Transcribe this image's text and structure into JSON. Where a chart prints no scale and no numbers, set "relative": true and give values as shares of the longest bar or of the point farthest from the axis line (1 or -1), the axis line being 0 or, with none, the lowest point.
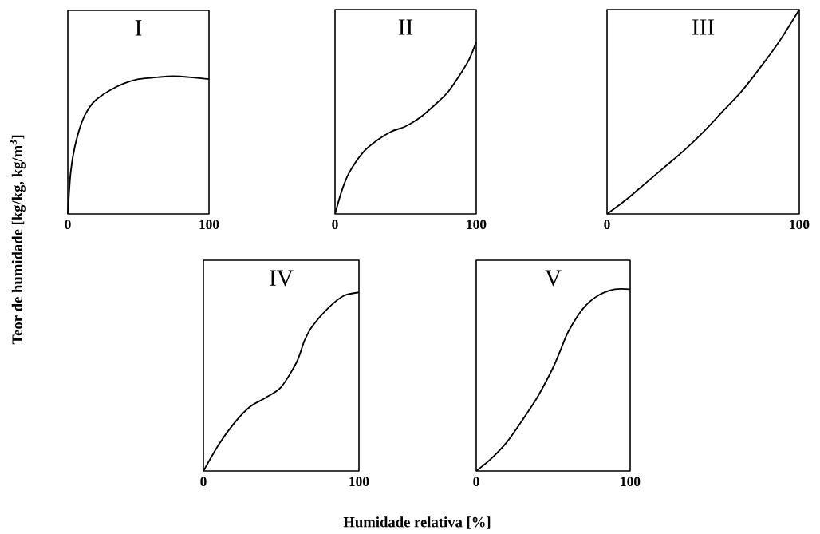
{
  "chart_data": [
    {
      "type": "line",
      "title": "I",
      "ylabel": "Teor de humidade [kg/kg, kg/m$^{3}$]",
      "relative": true,
      "tick_labels": "x",
      "xlim": [
        0,
        100
      ],
      "xticks": [
        0,
        100
      ],
      "series": [
        {
          "color": "#000000",
          "x": [
            0,
            2,
            5,
            10,
            15,
            20,
            30,
            40,
            50,
            60,
            70,
            80,
            90,
            100
          ],
          "values": [
            0,
            0.3,
            0.49,
            0.67,
            0.77,
            0.83,
            0.9,
            0.95,
            0.98,
            0.99,
            1,
            1,
            0.99,
            0.98
          ]
        }
      ]
    },
    {
      "type": "line",
      "title": "II",
      "relative": true,
      "tick_labels": "x",
      "xlim": [
        0,
        100
      ],
      "xticks": [
        0,
        100
      ],
      "series": [
        {
          "color": "#000000",
          "x": [
            0,
            5,
            10,
            20,
            30,
            40,
            50,
            60,
            70,
            80,
            90,
            95,
            100
          ],
          "values": [
            0,
            0.14,
            0.24,
            0.36,
            0.43,
            0.48,
            0.51,
            0.56,
            0.63,
            0.71,
            0.83,
            0.9,
            1
          ]
        }
      ]
    },
    {
      "type": "line",
      "title": "III",
      "relative": true,
      "tick_labels": "x",
      "xlim": [
        0,
        100
      ],
      "xticks": [
        0,
        100
      ],
      "series": [
        {
          "color": "#000000",
          "x": [
            0,
            10,
            20,
            30,
            40,
            50,
            60,
            70,
            80,
            90,
            100
          ],
          "values": [
            0,
            0.07,
            0.15,
            0.23,
            0.31,
            0.4,
            0.5,
            0.6,
            0.72,
            0.85,
            1
          ]
        }
      ]
    },
    {
      "type": "line",
      "title": "IV",
      "xlabel": "Humidade relativa [%]",
      "relative": true,
      "tick_labels": "x",
      "xlim": [
        0,
        100
      ],
      "xticks": [
        0,
        100
      ],
      "series": [
        {
          "color": "#000000",
          "x": [
            0,
            10,
            20,
            30,
            40,
            50,
            60,
            65,
            70,
            80,
            90,
            100
          ],
          "values": [
            0,
            0.15,
            0.27,
            0.36,
            0.41,
            0.47,
            0.61,
            0.73,
            0.81,
            0.91,
            0.98,
            1
          ]
        }
      ]
    },
    {
      "type": "line",
      "title": "V",
      "relative": true,
      "tick_labels": "x",
      "xlim": [
        0,
        100
      ],
      "xticks": [
        0,
        100
      ],
      "series": [
        {
          "color": "#000000",
          "x": [
            0,
            10,
            20,
            30,
            40,
            50,
            55,
            60,
            70,
            80,
            90,
            100
          ],
          "values": [
            0,
            0.07,
            0.16,
            0.28,
            0.41,
            0.57,
            0.67,
            0.77,
            0.9,
            0.97,
            1,
            1
          ]
        }
      ]
    }
  ]
}
